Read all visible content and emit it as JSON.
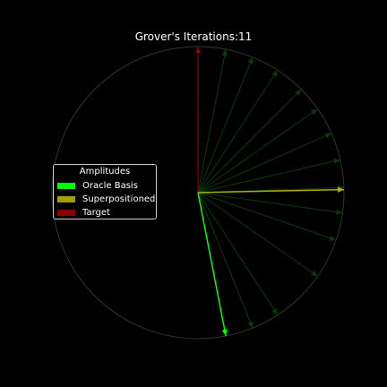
{
  "title_prefix": "Grover's Iterations:",
  "iterations": "11",
  "legend": {
    "title": "Amplitudes",
    "items": [
      {
        "label": "Oracle Basis",
        "color": "#00ff00"
      },
      {
        "label": "Superpositioned",
        "color": "#a0a000"
      },
      {
        "label": "Target",
        "color": "#8b0000"
      }
    ]
  },
  "colors": {
    "background": "#000000",
    "circle": "#333333",
    "history": "#0a3a0a",
    "oracle": "#00ff00",
    "superposition": "#b0b000",
    "target": "#8b0000"
  },
  "vectors": {
    "target_angle_deg": 90,
    "superposition_angle_deg": 1.2,
    "oracle_angle_deg": -79,
    "history_angles_deg": [
      79,
      68,
      57,
      45,
      35,
      24,
      13,
      2,
      -8,
      -19,
      -35,
      -57,
      -68
    ]
  }
}
